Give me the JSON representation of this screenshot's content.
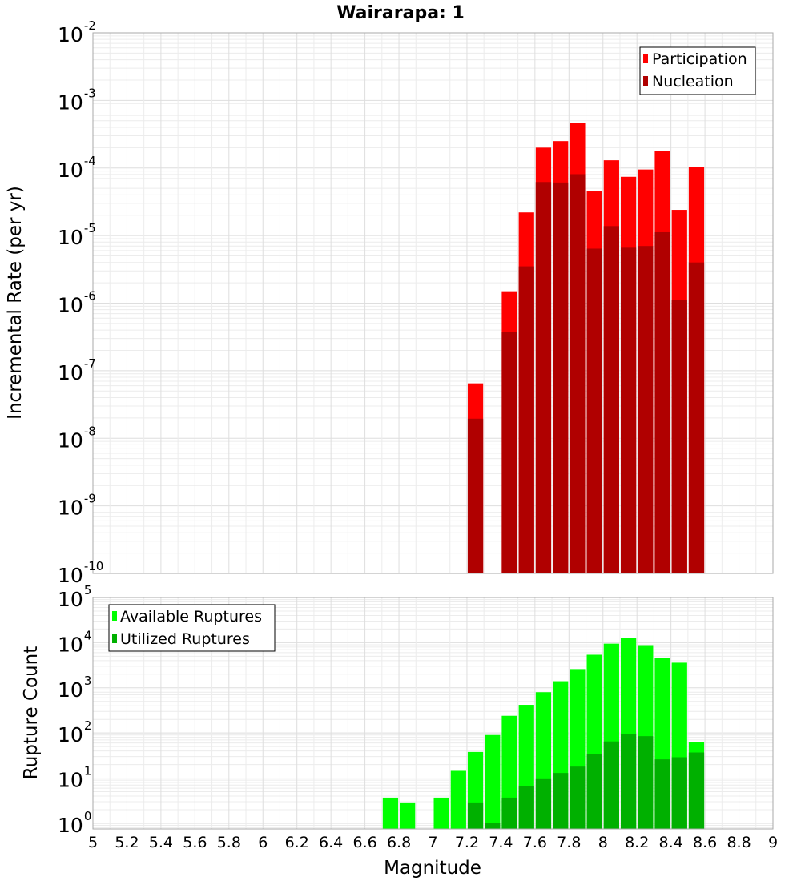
{
  "chart_data": [
    {
      "type": "bar",
      "title": "Wairarapa: 1",
      "xlabel": "",
      "ylabel": "Incremental Rate (per yr)",
      "yscale": "log",
      "ylim": [
        1e-10,
        0.01
      ],
      "xlim": [
        5,
        9
      ],
      "bin_width": 0.1,
      "grid": true,
      "legend_position": "top-right",
      "x": [
        7.25,
        7.35,
        7.45,
        7.55,
        7.65,
        7.75,
        7.85,
        7.95,
        8.05,
        8.15,
        8.25,
        8.35,
        8.45,
        8.55
      ],
      "series": [
        {
          "name": "Participation",
          "color": "#ff0000",
          "values": [
            6.5e-08,
            null,
            1.5e-06,
            2.2e-05,
            0.0002,
            0.00025,
            0.00046,
            4.5e-05,
            0.00013,
            7.4e-05,
            9.5e-05,
            0.00018,
            2.4e-05,
            0.000104
          ]
        },
        {
          "name": "Nucleation",
          "color": "#b00000",
          "values": [
            1.95e-08,
            null,
            3.7e-07,
            3.5e-06,
            6.2e-05,
            6.1e-05,
            8.1e-05,
            6.4e-06,
            1.38e-05,
            6.6e-06,
            7e-06,
            1.12e-05,
            1.1e-06,
            4e-06
          ]
        }
      ],
      "ytick_labels": [
        {
          "base": "10",
          "exp": "-2"
        },
        {
          "base": "10",
          "exp": "-3"
        },
        {
          "base": "10",
          "exp": "-4"
        },
        {
          "base": "10",
          "exp": "-5"
        },
        {
          "base": "10",
          "exp": "-6"
        },
        {
          "base": "10",
          "exp": "-7"
        },
        {
          "base": "10",
          "exp": "-8"
        },
        {
          "base": "10",
          "exp": "-9"
        },
        {
          "base": "10",
          "exp": "-10"
        }
      ]
    },
    {
      "type": "bar",
      "title": "",
      "xlabel": "Magnitude",
      "ylabel": "Rupture Count",
      "yscale": "log",
      "ylim": [
        0.75,
        100000.0
      ],
      "xlim": [
        5,
        9
      ],
      "bin_width": 0.1,
      "grid": true,
      "legend_position": "top-left",
      "x": [
        6.75,
        6.85,
        6.95,
        7.05,
        7.15,
        7.25,
        7.35,
        7.45,
        7.55,
        7.65,
        7.75,
        7.85,
        7.95,
        8.05,
        8.15,
        8.25,
        8.35,
        8.45,
        8.55
      ],
      "series": [
        {
          "name": "Available Ruptures",
          "color": "#00ff00",
          "values": [
            3.7,
            2.9,
            null,
            3.7,
            14.5,
            38,
            90,
            240,
            420,
            800,
            1400,
            2600,
            5400,
            9500,
            12500,
            8800,
            4600,
            3600,
            62
          ]
        },
        {
          "name": "Utilized Ruptures",
          "color": "#00b000",
          "values": [
            null,
            null,
            null,
            null,
            null,
            2.9,
            1.0,
            3.7,
            6.7,
            9.5,
            13,
            18,
            34,
            65,
            95,
            85,
            26,
            29,
            37
          ]
        }
      ],
      "ytick_labels": [
        {
          "base": "10",
          "exp": "5"
        },
        {
          "base": "10",
          "exp": "4"
        },
        {
          "base": "10",
          "exp": "3"
        },
        {
          "base": "10",
          "exp": "2"
        },
        {
          "base": "10",
          "exp": "1"
        },
        {
          "base": "10",
          "exp": "0"
        }
      ],
      "xtick_labels": [
        "5",
        "5.2",
        "5.4",
        "5.6",
        "5.8",
        "6",
        "6.2",
        "6.4",
        "6.6",
        "6.8",
        "7",
        "7.2",
        "7.4",
        "7.6",
        "7.8",
        "8",
        "8.2",
        "8.4",
        "8.6",
        "8.8",
        "9"
      ]
    }
  ]
}
